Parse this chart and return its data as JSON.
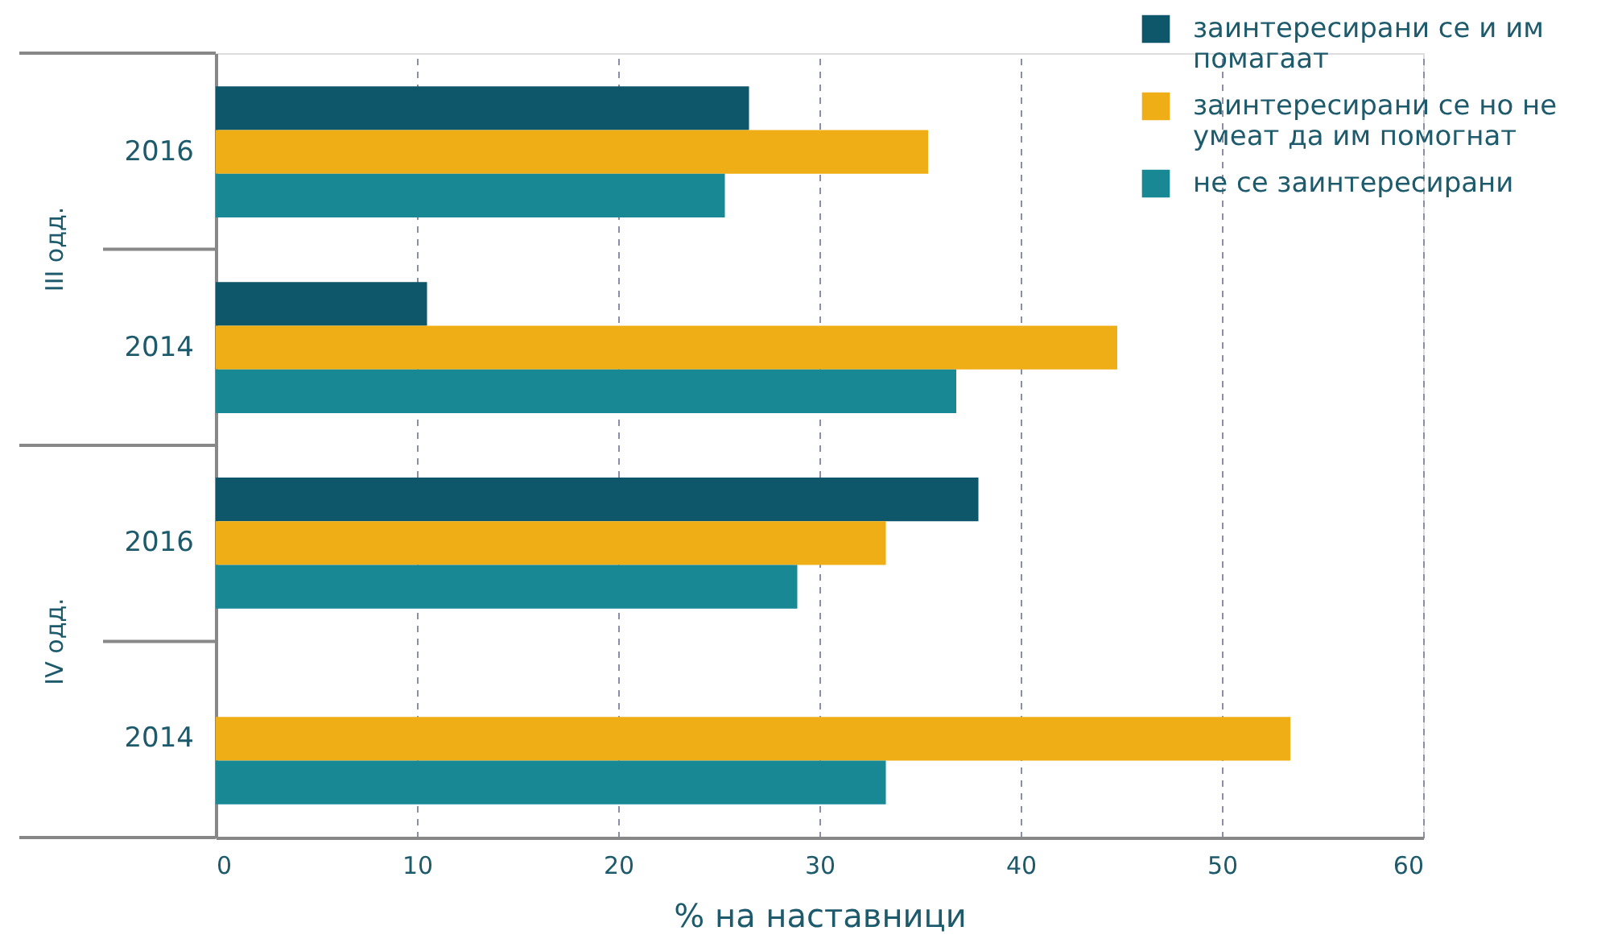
{
  "chart_data": {
    "type": "bar",
    "orientation": "horizontal",
    "xlabel": "% на наставници",
    "categories": [
      "2016",
      "2014",
      "2016",
      "2014"
    ],
    "series": [
      {
        "name": "заинтересирани се и им помагаат",
        "color": "#0e5669",
        "values": [
          26.5,
          10.5,
          37.9,
          null
        ]
      },
      {
        "name": "заинтересирани се  но не умеат да им помогнат",
        "color": "#f0ae16",
        "values": [
          35.4,
          44.8,
          33.3,
          53.4
        ]
      },
      {
        "name": "не се заинтересирани",
        "color": "#188894",
        "values": [
          25.3,
          36.8,
          28.9,
          33.3
        ]
      }
    ],
    "annotations": [
      "III одд.",
      "IV одд."
    ],
    "xlim": [
      0,
      60
    ],
    "xticks": [
      0,
      10,
      20,
      30,
      40,
      50,
      60
    ],
    "grid": "x",
    "legend": "top right"
  }
}
